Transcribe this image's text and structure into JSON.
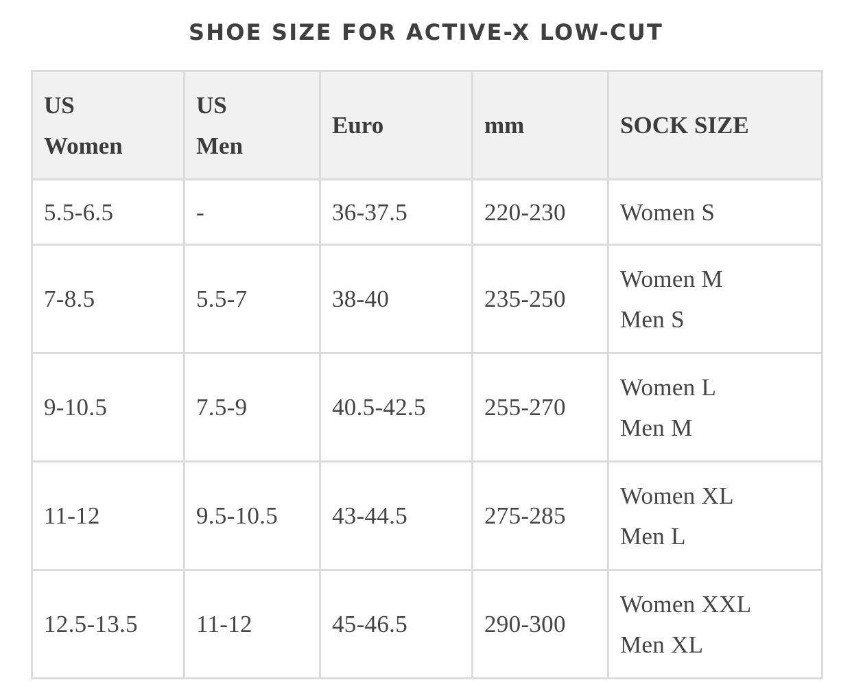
{
  "title": "SHOE SIZE FOR ACTIVE-X LOW-CUT",
  "headers": {
    "us_women": [
      "US",
      "Women"
    ],
    "us_men": [
      "US",
      "Men"
    ],
    "euro": "Euro",
    "mm": "mm",
    "sock_size": "SOCK SIZE"
  },
  "rows": [
    {
      "us_women": "5.5-6.5",
      "us_men": "-",
      "euro": "36-37.5",
      "mm": "220-230",
      "sock": [
        "Women S"
      ]
    },
    {
      "us_women": "7-8.5",
      "us_men": "5.5-7",
      "euro": "38-40",
      "mm": "235-250",
      "sock": [
        "Women M",
        "Men S"
      ]
    },
    {
      "us_women": "9-10.5",
      "us_men": "7.5-9",
      "euro": "40.5-42.5",
      "mm": "255-270",
      "sock": [
        "Women L",
        "Men M"
      ]
    },
    {
      "us_women": "11-12",
      "us_men": "9.5-10.5",
      "euro": "43-44.5",
      "mm": "275-285",
      "sock": [
        "Women XL",
        "Men L"
      ]
    },
    {
      "us_women": "12.5-13.5",
      "us_men": "11-12",
      "euro": "45-46.5",
      "mm": "290-300",
      "sock": [
        "Women XXL",
        "Men XL"
      ]
    }
  ]
}
